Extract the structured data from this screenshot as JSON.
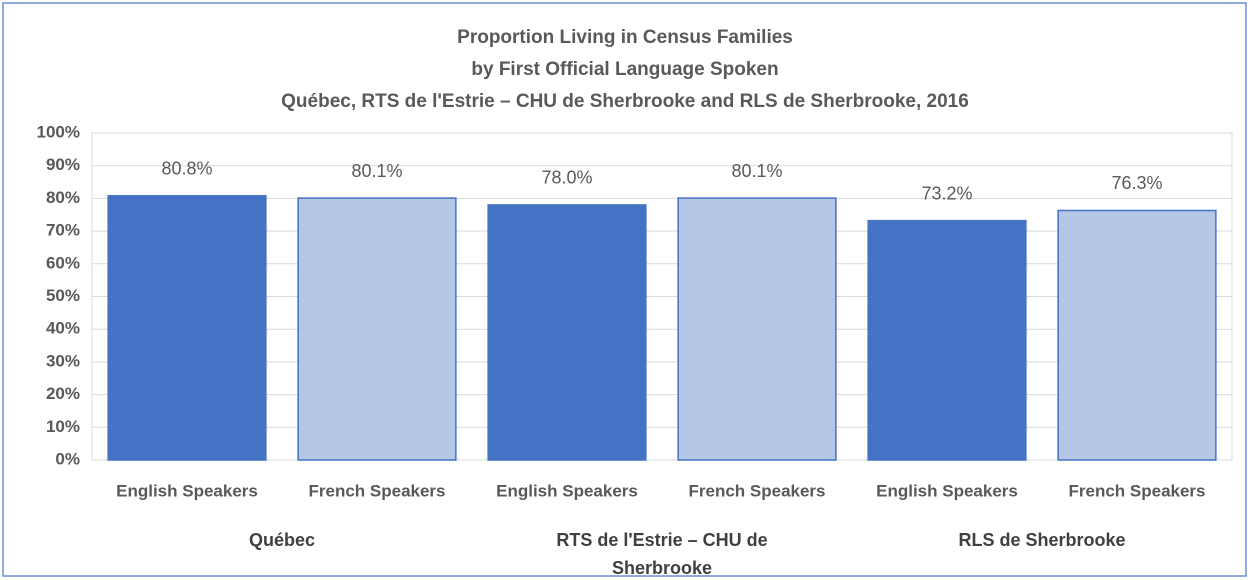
{
  "chart_data": {
    "type": "bar",
    "title": [
      "Proportion Living in Census Families",
      "by First Official Language Spoken",
      "Québec, RTS de l'Estrie – CHU de Sherbrooke and RLS de Sherbrooke, 2016"
    ],
    "categories": [
      "English Speakers",
      "French Speakers",
      "English Speakers",
      "French Speakers",
      "English Speakers",
      "French Speakers"
    ],
    "groups": [
      "Québec",
      "RTS de l'Estrie – CHU de Sherbrooke",
      "RLS de Sherbrooke"
    ],
    "values": [
      80.8,
      80.1,
      78.0,
      80.1,
      73.2,
      76.3
    ],
    "value_labels": [
      "80.8%",
      "80.1%",
      "78.0%",
      "80.1%",
      "73.2%",
      "76.3%"
    ],
    "colors": [
      "#4472c4",
      "#b4c7e7",
      "#4472c4",
      "#b4c7e7",
      "#4472c4",
      "#b4c7e7"
    ],
    "edgecolor": "#4472c4",
    "ylim": [
      0,
      100
    ],
    "yticks": [
      {
        "value": 0,
        "label": "0%"
      },
      {
        "value": 10,
        "label": "10%"
      },
      {
        "value": 20,
        "label": "20%"
      },
      {
        "value": 30,
        "label": "30%"
      },
      {
        "value": 40,
        "label": "40%"
      },
      {
        "value": 50,
        "label": "50%"
      },
      {
        "value": 60,
        "label": "60%"
      },
      {
        "value": 70,
        "label": "70%"
      },
      {
        "value": 80,
        "label": "80%"
      },
      {
        "value": 90,
        "label": "90%"
      },
      {
        "value": 100,
        "label": "100%"
      }
    ],
    "grid": true
  }
}
